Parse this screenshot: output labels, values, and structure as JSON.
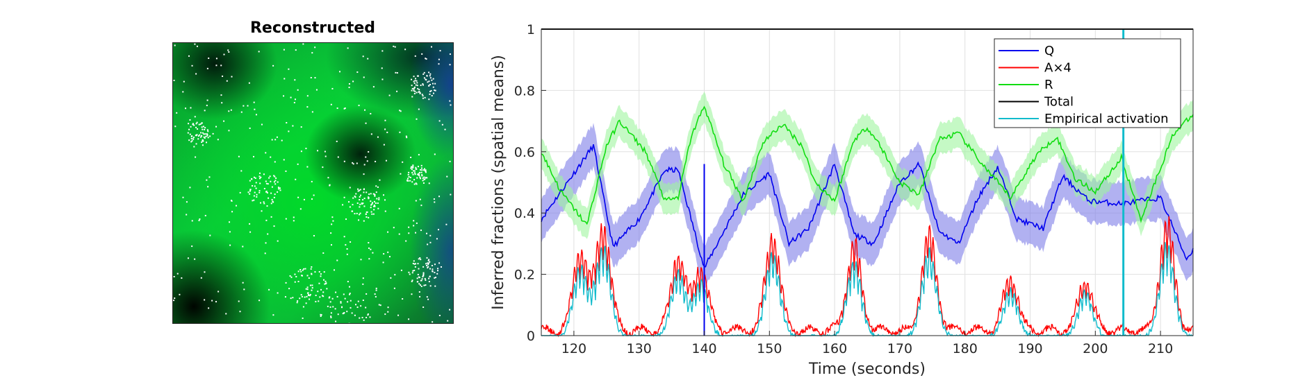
{
  "left_panel": {
    "title": "Reconstructed"
  },
  "chart_data": {
    "type": "line",
    "xlabel": "Time (seconds)",
    "ylabel": "Inferred fractions (spatial means)",
    "xlim": [
      115,
      215
    ],
    "ylim": [
      0,
      1
    ],
    "x_ticks": [
      120,
      130,
      140,
      150,
      160,
      170,
      180,
      190,
      200,
      210
    ],
    "y_ticks": [
      0,
      0.2,
      0.4,
      0.6,
      0.8,
      1
    ],
    "y_tick_labels": [
      "0",
      "0.2",
      "0.4",
      "0.6",
      "0.8",
      "1"
    ],
    "grid": true,
    "legend_position": "top-right",
    "series": [
      {
        "name": "Q",
        "color": "#0000ee",
        "band_color": "#7d7de8",
        "x": [
          115,
          123,
          126,
          130,
          134,
          136,
          140,
          146,
          150,
          153,
          156,
          160,
          163,
          166,
          170,
          173,
          176,
          179,
          182,
          185,
          188,
          192,
          195,
          199,
          204,
          210,
          214,
          215
        ],
        "y": [
          0.38,
          0.62,
          0.29,
          0.38,
          0.54,
          0.54,
          0.22,
          0.46,
          0.53,
          0.3,
          0.35,
          0.56,
          0.33,
          0.3,
          0.5,
          0.56,
          0.34,
          0.3,
          0.45,
          0.55,
          0.38,
          0.35,
          0.52,
          0.44,
          0.43,
          0.45,
          0.25,
          0.28
        ],
        "band": 0.07
      },
      {
        "name": "A×4",
        "color": "#ff0000"
      },
      {
        "name": "R",
        "color": "#11dd11",
        "band_color": "#9ef59e",
        "x": [
          115,
          118,
          122,
          125,
          127,
          131,
          134,
          136,
          138,
          140,
          143,
          146,
          149,
          152,
          155,
          157,
          160,
          163,
          165,
          167,
          170,
          173,
          176,
          179,
          183,
          187,
          191,
          194,
          197,
          200,
          204,
          207,
          212,
          215
        ],
        "y": [
          0.6,
          0.47,
          0.36,
          0.62,
          0.7,
          0.6,
          0.44,
          0.45,
          0.65,
          0.75,
          0.56,
          0.44,
          0.63,
          0.69,
          0.62,
          0.5,
          0.44,
          0.64,
          0.68,
          0.62,
          0.5,
          0.46,
          0.64,
          0.66,
          0.55,
          0.45,
          0.59,
          0.65,
          0.51,
          0.47,
          0.58,
          0.38,
          0.66,
          0.72
        ],
        "band": 0.05
      },
      {
        "name": "Total",
        "color": "#000000",
        "x": [
          115,
          215
        ],
        "y": [
          1.0,
          1.0
        ]
      },
      {
        "name": "Empirical activation",
        "color": "#11bbcc"
      }
    ],
    "activation_bursts": [
      {
        "x": 121,
        "peak": 0.28
      },
      {
        "x": 124.5,
        "peak": 0.36
      },
      {
        "x": 136,
        "peak": 0.26
      },
      {
        "x": 139.5,
        "peak": 0.22
      },
      {
        "x": 150.5,
        "peak": 0.33
      },
      {
        "x": 163,
        "peak": 0.3
      },
      {
        "x": 174.5,
        "peak": 0.34
      },
      {
        "x": 187,
        "peak": 0.19
      },
      {
        "x": 198.5,
        "peak": 0.18
      },
      {
        "x": 211,
        "peak": 0.37
      }
    ],
    "spikes": [
      {
        "x": 140,
        "peak": 0.56,
        "color": "#0000ee"
      },
      {
        "x": 204.3,
        "peak": 1.0,
        "color": "#11bbcc"
      }
    ]
  }
}
